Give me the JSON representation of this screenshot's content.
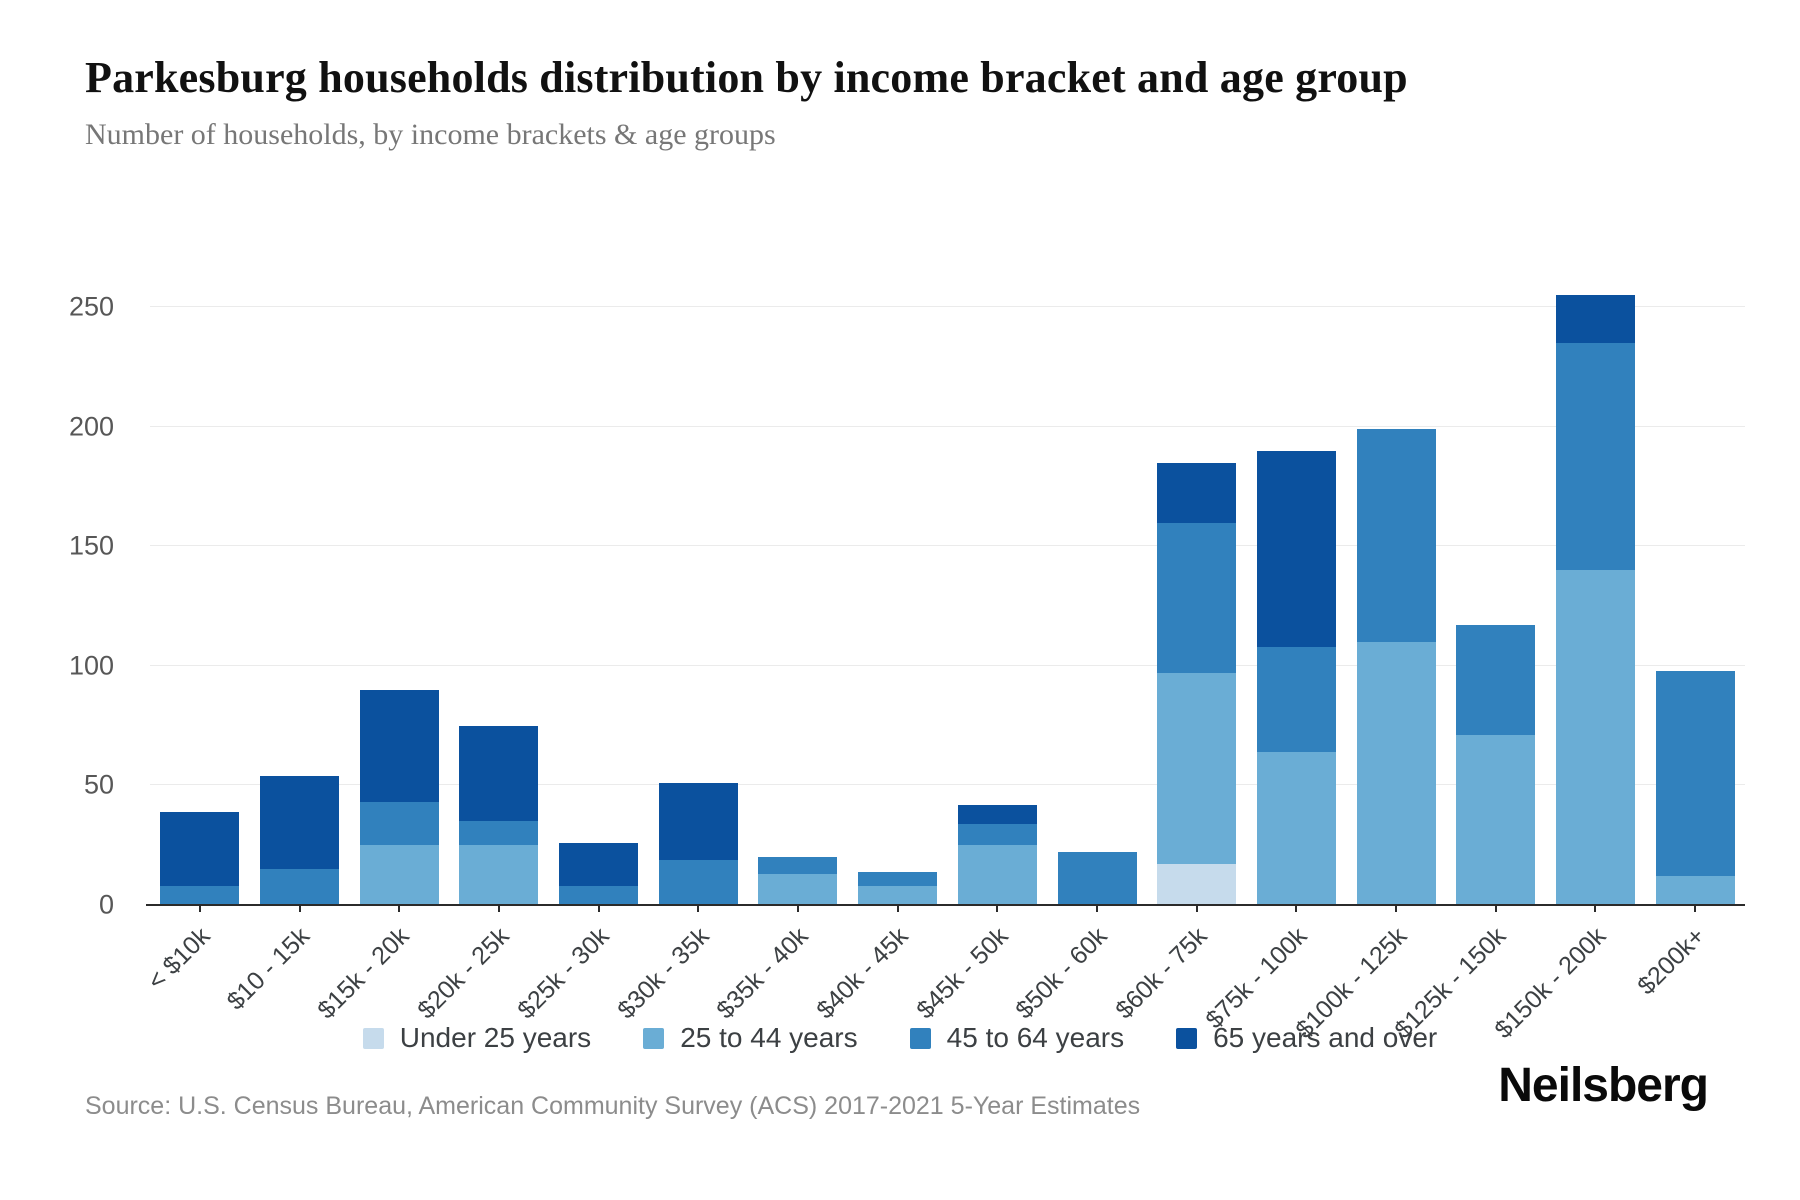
{
  "header": {
    "title": "Parkesburg households distribution by income bracket and age group",
    "subtitle": "Number of households, by income brackets & age groups"
  },
  "chart_data": {
    "type": "bar",
    "stacked": true,
    "title": "Parkesburg households distribution by income bracket and age group",
    "subtitle": "Number of households, by income brackets & age groups",
    "categories": [
      "< $10k",
      "$10 - 15k",
      "$15k - 20k",
      "$20k - 25k",
      "$25k - 30k",
      "$30k - 35k",
      "$35k - 40k",
      "$40k - 45k",
      "$45k - 50k",
      "$50k - 60k",
      "$60k - 75k",
      "$75k - 100k",
      "$100k - 125k",
      "$125k - 150k",
      "$150k - 200k",
      "$200k+"
    ],
    "series": [
      {
        "name": "Under 25 years",
        "color": "#c6dbec",
        "values": [
          0,
          0,
          0,
          0,
          0,
          0,
          0,
          0,
          0,
          0,
          17,
          0,
          0,
          0,
          0,
          0
        ]
      },
      {
        "name": "25 to 44 years",
        "color": "#6aadd5",
        "values": [
          0,
          0,
          25,
          25,
          0,
          0,
          13,
          8,
          25,
          0,
          80,
          64,
          110,
          71,
          140,
          12
        ]
      },
      {
        "name": "45 to 64 years",
        "color": "#3181bd",
        "values": [
          8,
          15,
          18,
          10,
          8,
          19,
          7,
          6,
          9,
          22,
          63,
          44,
          89,
          46,
          95,
          86
        ]
      },
      {
        "name": "65 years and over",
        "color": "#0b519e",
        "values": [
          31,
          39,
          47,
          40,
          18,
          32,
          0,
          0,
          8,
          0,
          25,
          82,
          0,
          0,
          20,
          0
        ]
      }
    ],
    "totals": [
      39,
      54,
      90,
      75,
      26,
      51,
      20,
      14,
      42,
      22,
      185,
      190,
      199,
      117,
      255,
      98
    ],
    "xlabel": "",
    "ylabel": "",
    "yticks": [
      0,
      50,
      100,
      150,
      200,
      250
    ],
    "ylim": [
      0,
      274
    ],
    "grid": true,
    "legend_position": "bottom"
  },
  "footer": {
    "source": "Source: U.S. Census Bureau, American Community Survey (ACS) 2017-2021 5-Year Estimates",
    "brand": "Neilsberg"
  }
}
